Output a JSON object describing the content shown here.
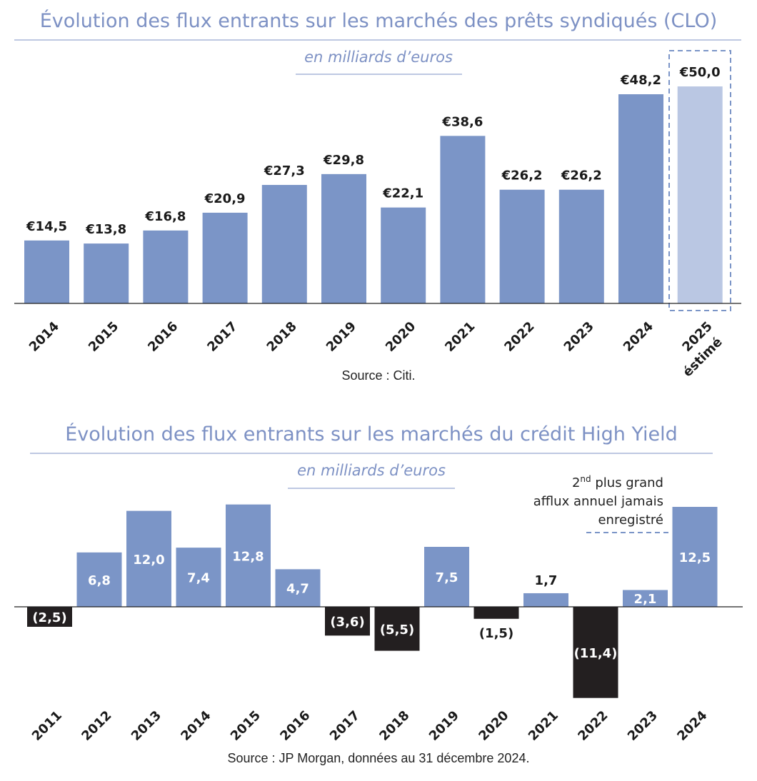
{
  "colors": {
    "bar": "#7b95c7",
    "bar_estimate": "#bac7e3",
    "negative": "#231f20",
    "title": "#7d91c4"
  },
  "chart_data": [
    {
      "type": "bar",
      "title": "Évolution des flux entrants sur les marchés des prêts syndiqués (CLO)",
      "subtitle": "en milliards d’euros",
      "source": "Source : Citi.",
      "categories": [
        "2014",
        "2015",
        "2016",
        "2017",
        "2018",
        "2019",
        "2020",
        "2021",
        "2022",
        "2023",
        "2024",
        "2025"
      ],
      "category_notes": {
        "2025": "éstimé"
      },
      "values": [
        14.5,
        13.8,
        16.8,
        20.9,
        27.3,
        29.8,
        22.1,
        38.6,
        26.2,
        26.2,
        48.2,
        50.0
      ],
      "data_labels": [
        "€14,5",
        "€13,8",
        "€16,8",
        "€20,9",
        "€27,3",
        "€29,8",
        "€22,1",
        "€38,6",
        "€26,2",
        "€26,2",
        "€48,2",
        "€50,0"
      ],
      "estimated": [
        false,
        false,
        false,
        false,
        false,
        false,
        false,
        false,
        false,
        false,
        false,
        true
      ],
      "grid": false
    },
    {
      "type": "bar",
      "title": "Évolution des flux entrants sur les marchés du crédit High Yield",
      "subtitle": "en milliards d’euros",
      "source": "Source : JP Morgan, données au 31 décembre 2024.",
      "categories": [
        "2011",
        "2012",
        "2013",
        "2014",
        "2015",
        "2016",
        "2017",
        "2018",
        "2019",
        "2020",
        "2021",
        "2022",
        "2023",
        "2024"
      ],
      "values": [
        -2.5,
        6.8,
        12.0,
        7.4,
        12.8,
        4.7,
        -3.6,
        -5.5,
        7.5,
        -1.5,
        1.7,
        -11.4,
        2.1,
        12.5
      ],
      "data_labels": [
        "(2,5)",
        "6,8",
        "12,0",
        "7,4",
        "12,8",
        "4,7",
        "(3,6)",
        "(5,5)",
        "7,5",
        "(1,5)",
        "1,7",
        "(11,4)",
        "2,1",
        "12,5"
      ],
      "annotation": {
        "line1_base": "2",
        "line1_sup": "nd",
        "line1_rest": " plus grand",
        "line2": "afflux annuel jamais",
        "line3": "enregistré"
      },
      "grid": false
    }
  ]
}
